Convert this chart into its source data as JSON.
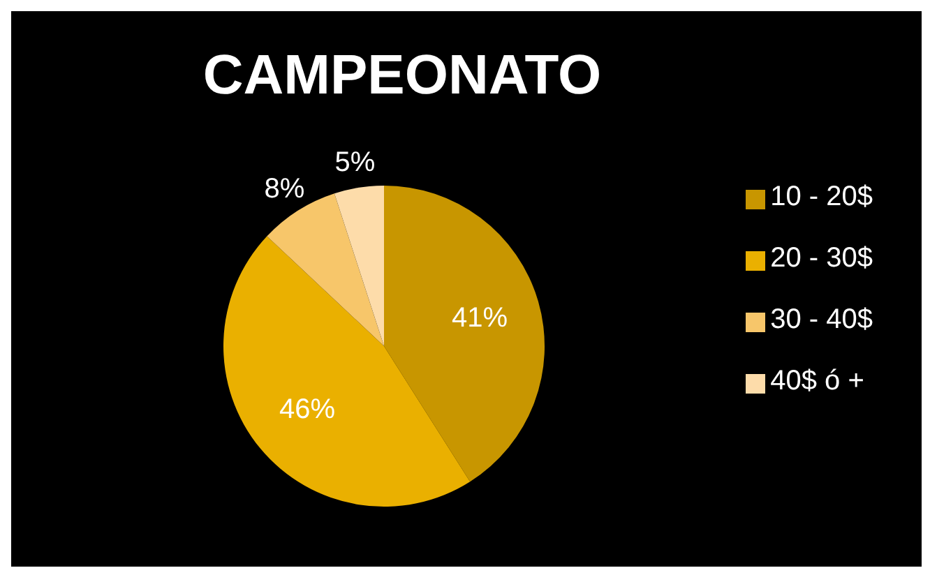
{
  "chart_data": {
    "type": "pie",
    "title": "CAMPEONATO",
    "categories": [
      "10 - 20$",
      "20 - 30$",
      "30 - 40$",
      "40$ ó +"
    ],
    "values": [
      41,
      46,
      8,
      5
    ],
    "value_labels": [
      "41%",
      "46%",
      "8%",
      "5%"
    ],
    "colors": [
      "#c89600",
      "#eab000",
      "#f7c66a",
      "#fddcaa"
    ],
    "legend": "right"
  }
}
